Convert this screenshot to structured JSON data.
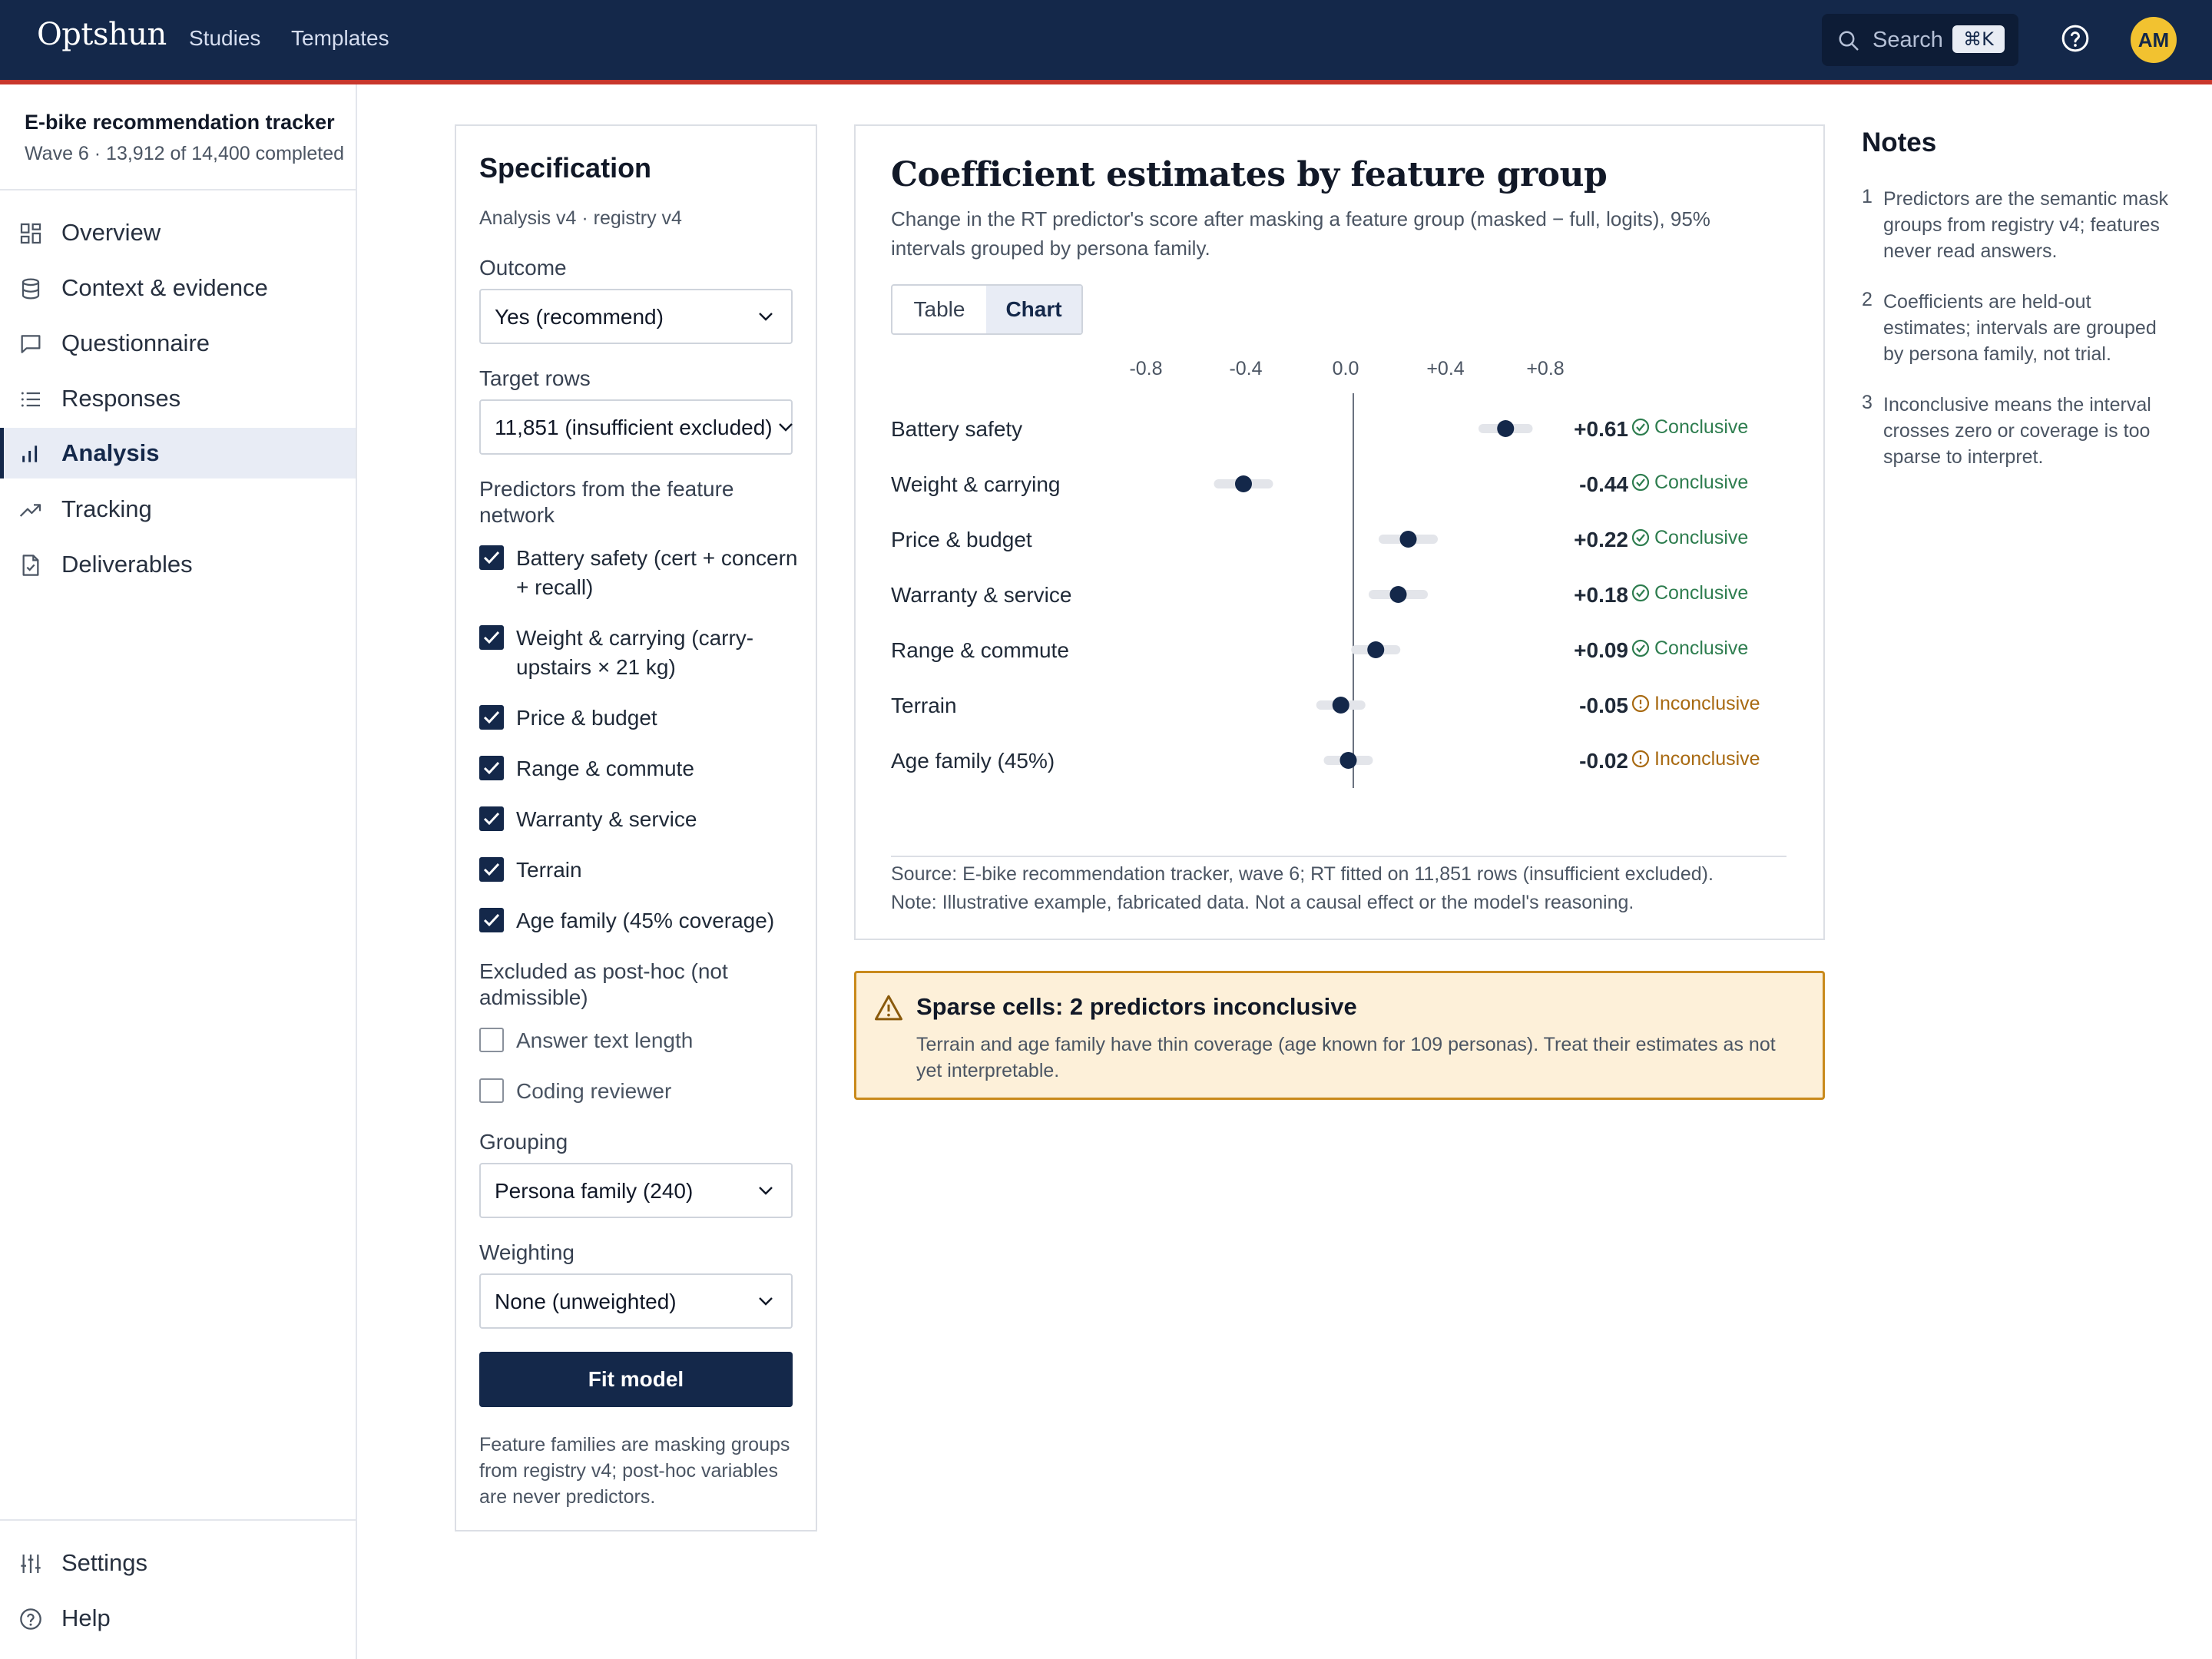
{
  "topbar": {
    "brand": "Optshun",
    "nav": [
      "Studies",
      "Templates"
    ],
    "search_label": "Search",
    "search_shortcut": "⌘K",
    "avatar_initials": "AM"
  },
  "sidebar": {
    "study_title": "E-bike recommendation tracker",
    "study_subtitle": "Wave 6 · 13,912 of 14,400 completed",
    "items": [
      {
        "label": "Overview",
        "icon": "grid-icon"
      },
      {
        "label": "Context & evidence",
        "icon": "database-icon"
      },
      {
        "label": "Questionnaire",
        "icon": "comment-icon"
      },
      {
        "label": "Responses",
        "icon": "list-icon"
      },
      {
        "label": "Analysis",
        "icon": "bar-chart-icon",
        "active": true
      },
      {
        "label": "Tracking",
        "icon": "trend-icon"
      },
      {
        "label": "Deliverables",
        "icon": "document-icon"
      }
    ],
    "bottom_items": [
      {
        "label": "Settings",
        "icon": "sliders-icon"
      },
      {
        "label": "Help",
        "icon": "help-circle-icon"
      }
    ]
  },
  "spec": {
    "title": "Specification",
    "subtitle": "Analysis v4 · registry v4",
    "outcome_label": "Outcome",
    "outcome_value": "Yes (recommend)",
    "target_label": "Target rows",
    "target_value": "11,851 (insufficient excluded)",
    "predictors_label": "Predictors from the feature network",
    "predictors": [
      {
        "label": "Battery safety (cert + concern + recall)",
        "checked": true
      },
      {
        "label": "Weight & carrying (carry-upstairs × 21 kg)",
        "checked": true
      },
      {
        "label": "Price & budget",
        "checked": true
      },
      {
        "label": "Range & commute",
        "checked": true
      },
      {
        "label": "Warranty & service",
        "checked": true
      },
      {
        "label": "Terrain",
        "checked": true
      },
      {
        "label": "Age family (45% coverage)",
        "checked": true
      }
    ],
    "excluded_label": "Excluded as post-hoc (not admissible)",
    "excluded": [
      {
        "label": "Answer text length",
        "checked": false
      },
      {
        "label": "Coding reviewer",
        "checked": false
      }
    ],
    "grouping_label": "Grouping",
    "grouping_value": "Persona family (240)",
    "weighting_label": "Weighting",
    "weighting_value": "None (unweighted)",
    "fit_button": "Fit model",
    "footnote": "Feature families are masking groups from registry v4; post-hoc variables are never predictors."
  },
  "chart_card": {
    "title": "Coefficient estimates by feature group",
    "subtitle": "Change in the RT predictor's score after masking a feature group (masked − full, logits), 95% intervals grouped by persona family.",
    "toggle": {
      "table": "Table",
      "chart": "Chart",
      "active": "Chart"
    },
    "source": "Source: E-bike recommendation tracker, wave 6; RT fitted on 11,851 rows (insufficient excluded).",
    "note": "Note: Illustrative example, fabricated data. Not a causal effect or the model's reasoning."
  },
  "chart_data": {
    "type": "scatter",
    "subtype": "forest-plot",
    "x_ticks": [
      "-0.8",
      "-0.4",
      "0.0",
      "+0.4",
      "+0.8"
    ],
    "xlim": [
      -1.0,
      0.8
    ],
    "reference_line": 0.0,
    "rows": [
      {
        "label": "Battery safety",
        "estimate": 0.61,
        "ci": [
          0.52,
          0.7
        ],
        "display": "+0.61",
        "status": "Conclusive"
      },
      {
        "label": "Weight & carrying",
        "estimate": -0.44,
        "ci": [
          -0.54,
          -0.34
        ],
        "display": "-0.44",
        "status": "Conclusive"
      },
      {
        "label": "Price & budget",
        "estimate": 0.22,
        "ci": [
          0.12,
          0.32
        ],
        "display": "+0.22",
        "status": "Conclusive"
      },
      {
        "label": "Warranty & service",
        "estimate": 0.18,
        "ci": [
          0.08,
          0.28
        ],
        "display": "+0.18",
        "status": "Conclusive"
      },
      {
        "label": "Range & commute",
        "estimate": 0.09,
        "ci": [
          0.01,
          0.17
        ],
        "display": "+0.09",
        "status": "Conclusive"
      },
      {
        "label": "Terrain",
        "estimate": -0.05,
        "ci": [
          -0.13,
          0.03
        ],
        "display": "-0.05",
        "status": "Inconclusive"
      },
      {
        "label": "Age family (45%)",
        "estimate": -0.02,
        "ci": [
          -0.1,
          0.06
        ],
        "display": "-0.02",
        "status": "Inconclusive"
      }
    ],
    "colors": {
      "point": "#14284a",
      "interval": "#e3e5ea",
      "conclusive": "#2e7d4f",
      "inconclusive": "#a86a12",
      "zero_line": "#6b7280"
    }
  },
  "alert": {
    "title": "Sparse cells: 2 predictors inconclusive",
    "body": "Terrain and age family have thin coverage (age known for 109 personas). Treat their estimates as not yet interpretable."
  },
  "notes": {
    "title": "Notes",
    "items": [
      {
        "num": "1",
        "text": "Predictors are the semantic mask groups from registry v4; features never read answers."
      },
      {
        "num": "2",
        "text": "Coefficients are held-out estimates; intervals are grouped by persona family, not trial."
      },
      {
        "num": "3",
        "text": "Inconclusive means the interval crosses zero or coverage is too sparse to interpret."
      }
    ]
  }
}
